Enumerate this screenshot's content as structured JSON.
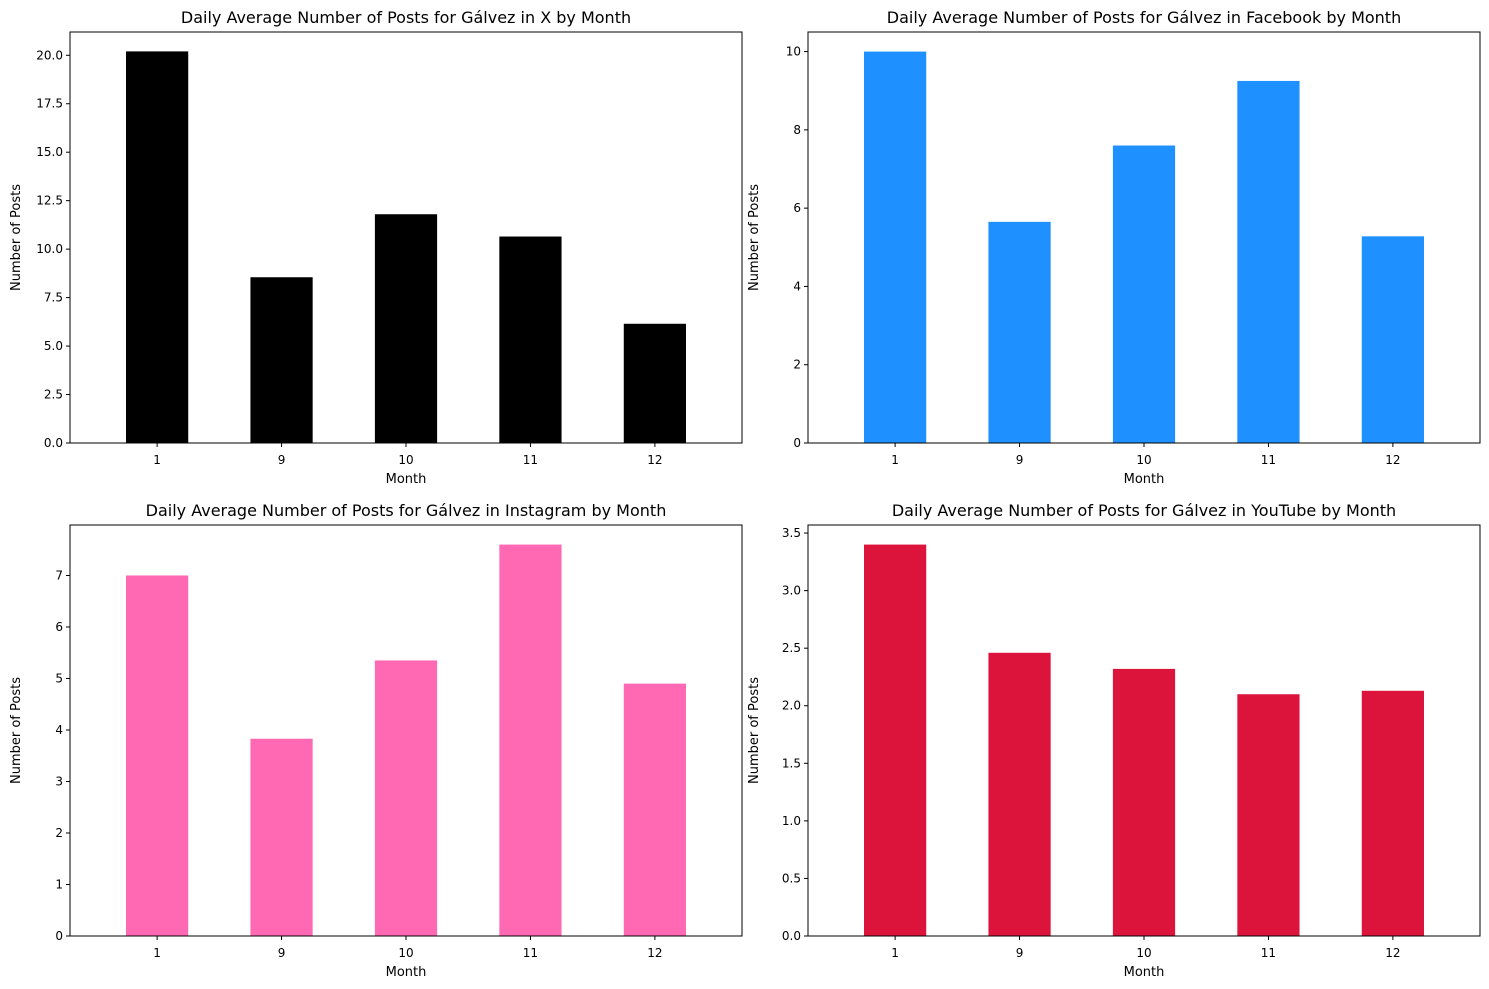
{
  "chart_data": [
    {
      "type": "bar",
      "title": "Daily Average Number of Posts for Gálvez in X by Month",
      "xlabel": "Month",
      "ylabel": "Number of Posts",
      "categories": [
        "1",
        "9",
        "10",
        "11",
        "12"
      ],
      "values": [
        20.2,
        8.55,
        11.8,
        10.65,
        6.15
      ],
      "ylim": [
        0,
        21.2
      ],
      "yticks": [
        "0.0",
        "2.5",
        "5.0",
        "7.5",
        "10.0",
        "12.5",
        "15.0",
        "17.5",
        "20.0"
      ],
      "ytick_values": [
        0,
        2.5,
        5,
        7.5,
        10,
        12.5,
        15,
        17.5,
        20
      ],
      "color": "#000000",
      "grid": false
    },
    {
      "type": "bar",
      "title": "Daily Average Number of Posts for Gálvez in Facebook by Month",
      "xlabel": "Month",
      "ylabel": "Number of Posts",
      "categories": [
        "1",
        "9",
        "10",
        "11",
        "12"
      ],
      "values": [
        10.0,
        5.65,
        7.6,
        9.25,
        5.28
      ],
      "ylim": [
        0,
        10.5
      ],
      "yticks": [
        "0",
        "2",
        "4",
        "6",
        "8",
        "10"
      ],
      "ytick_values": [
        0,
        2,
        4,
        6,
        8,
        10
      ],
      "color": "#1E90FF",
      "grid": false
    },
    {
      "type": "bar",
      "title": "Daily Average Number of Posts for Gálvez in Instagram by Month",
      "xlabel": "Month",
      "ylabel": "Number of Posts",
      "categories": [
        "1",
        "9",
        "10",
        "11",
        "12"
      ],
      "values": [
        7.0,
        3.83,
        5.35,
        7.6,
        4.9
      ],
      "ylim": [
        0,
        7.98
      ],
      "yticks": [
        "0",
        "1",
        "2",
        "3",
        "4",
        "5",
        "6",
        "7"
      ],
      "ytick_values": [
        0,
        1,
        2,
        3,
        4,
        5,
        6,
        7
      ],
      "color": "#FF69B4",
      "grid": false
    },
    {
      "type": "bar",
      "title": "Daily Average Number of Posts for Gálvez in YouTube by Month",
      "xlabel": "Month",
      "ylabel": "Number of Posts",
      "categories": [
        "1",
        "9",
        "10",
        "11",
        "12"
      ],
      "values": [
        3.4,
        2.46,
        2.32,
        2.1,
        2.13
      ],
      "ylim": [
        0,
        3.57
      ],
      "yticks": [
        "0.0",
        "0.5",
        "1.0",
        "1.5",
        "2.0",
        "2.5",
        "3.0",
        "3.5"
      ],
      "ytick_values": [
        0,
        0.5,
        1,
        1.5,
        2,
        2.5,
        3,
        3.5
      ],
      "color": "#DC143C",
      "grid": false
    }
  ]
}
